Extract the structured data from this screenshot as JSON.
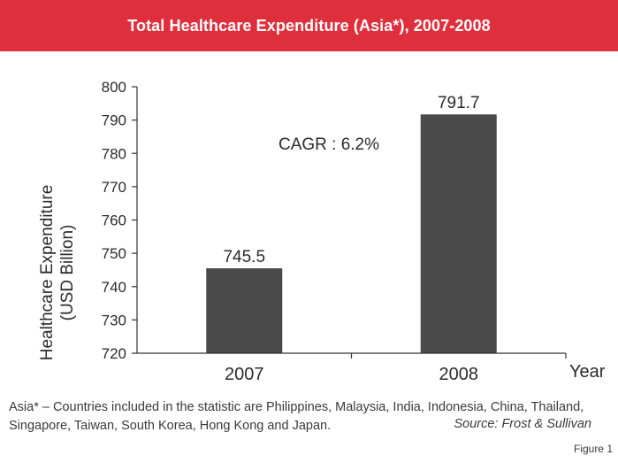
{
  "chart_data": {
    "type": "bar",
    "title": "Total Healthcare Expenditure (Asia*), 2007-2008",
    "categories": [
      "2007",
      "2008"
    ],
    "values": [
      745.5,
      791.7
    ],
    "value_labels": [
      "745.5",
      "791.7"
    ],
    "xlabel": "Year",
    "ylabel": "Healthcare Expenditure",
    "ylabel_unit": "(USD Billion)",
    "ylim": [
      720,
      800
    ],
    "yticks": [
      "720",
      "730",
      "740",
      "750",
      "760",
      "770",
      "780",
      "790",
      "800"
    ],
    "annotation": "CAGR : 6.2%",
    "grid": false,
    "bar_color": "#4a4a4a",
    "banner_color": "#e02f3c"
  },
  "footnote": "Asia* – Countries included in the statistic are Philippines, Malaysia, India, Indonesia, China, Thailand, Singapore, Taiwan, South Korea, Hong Kong and Japan.",
  "source": "Source: Frost & Sullivan",
  "figure_label": "Figure 1"
}
